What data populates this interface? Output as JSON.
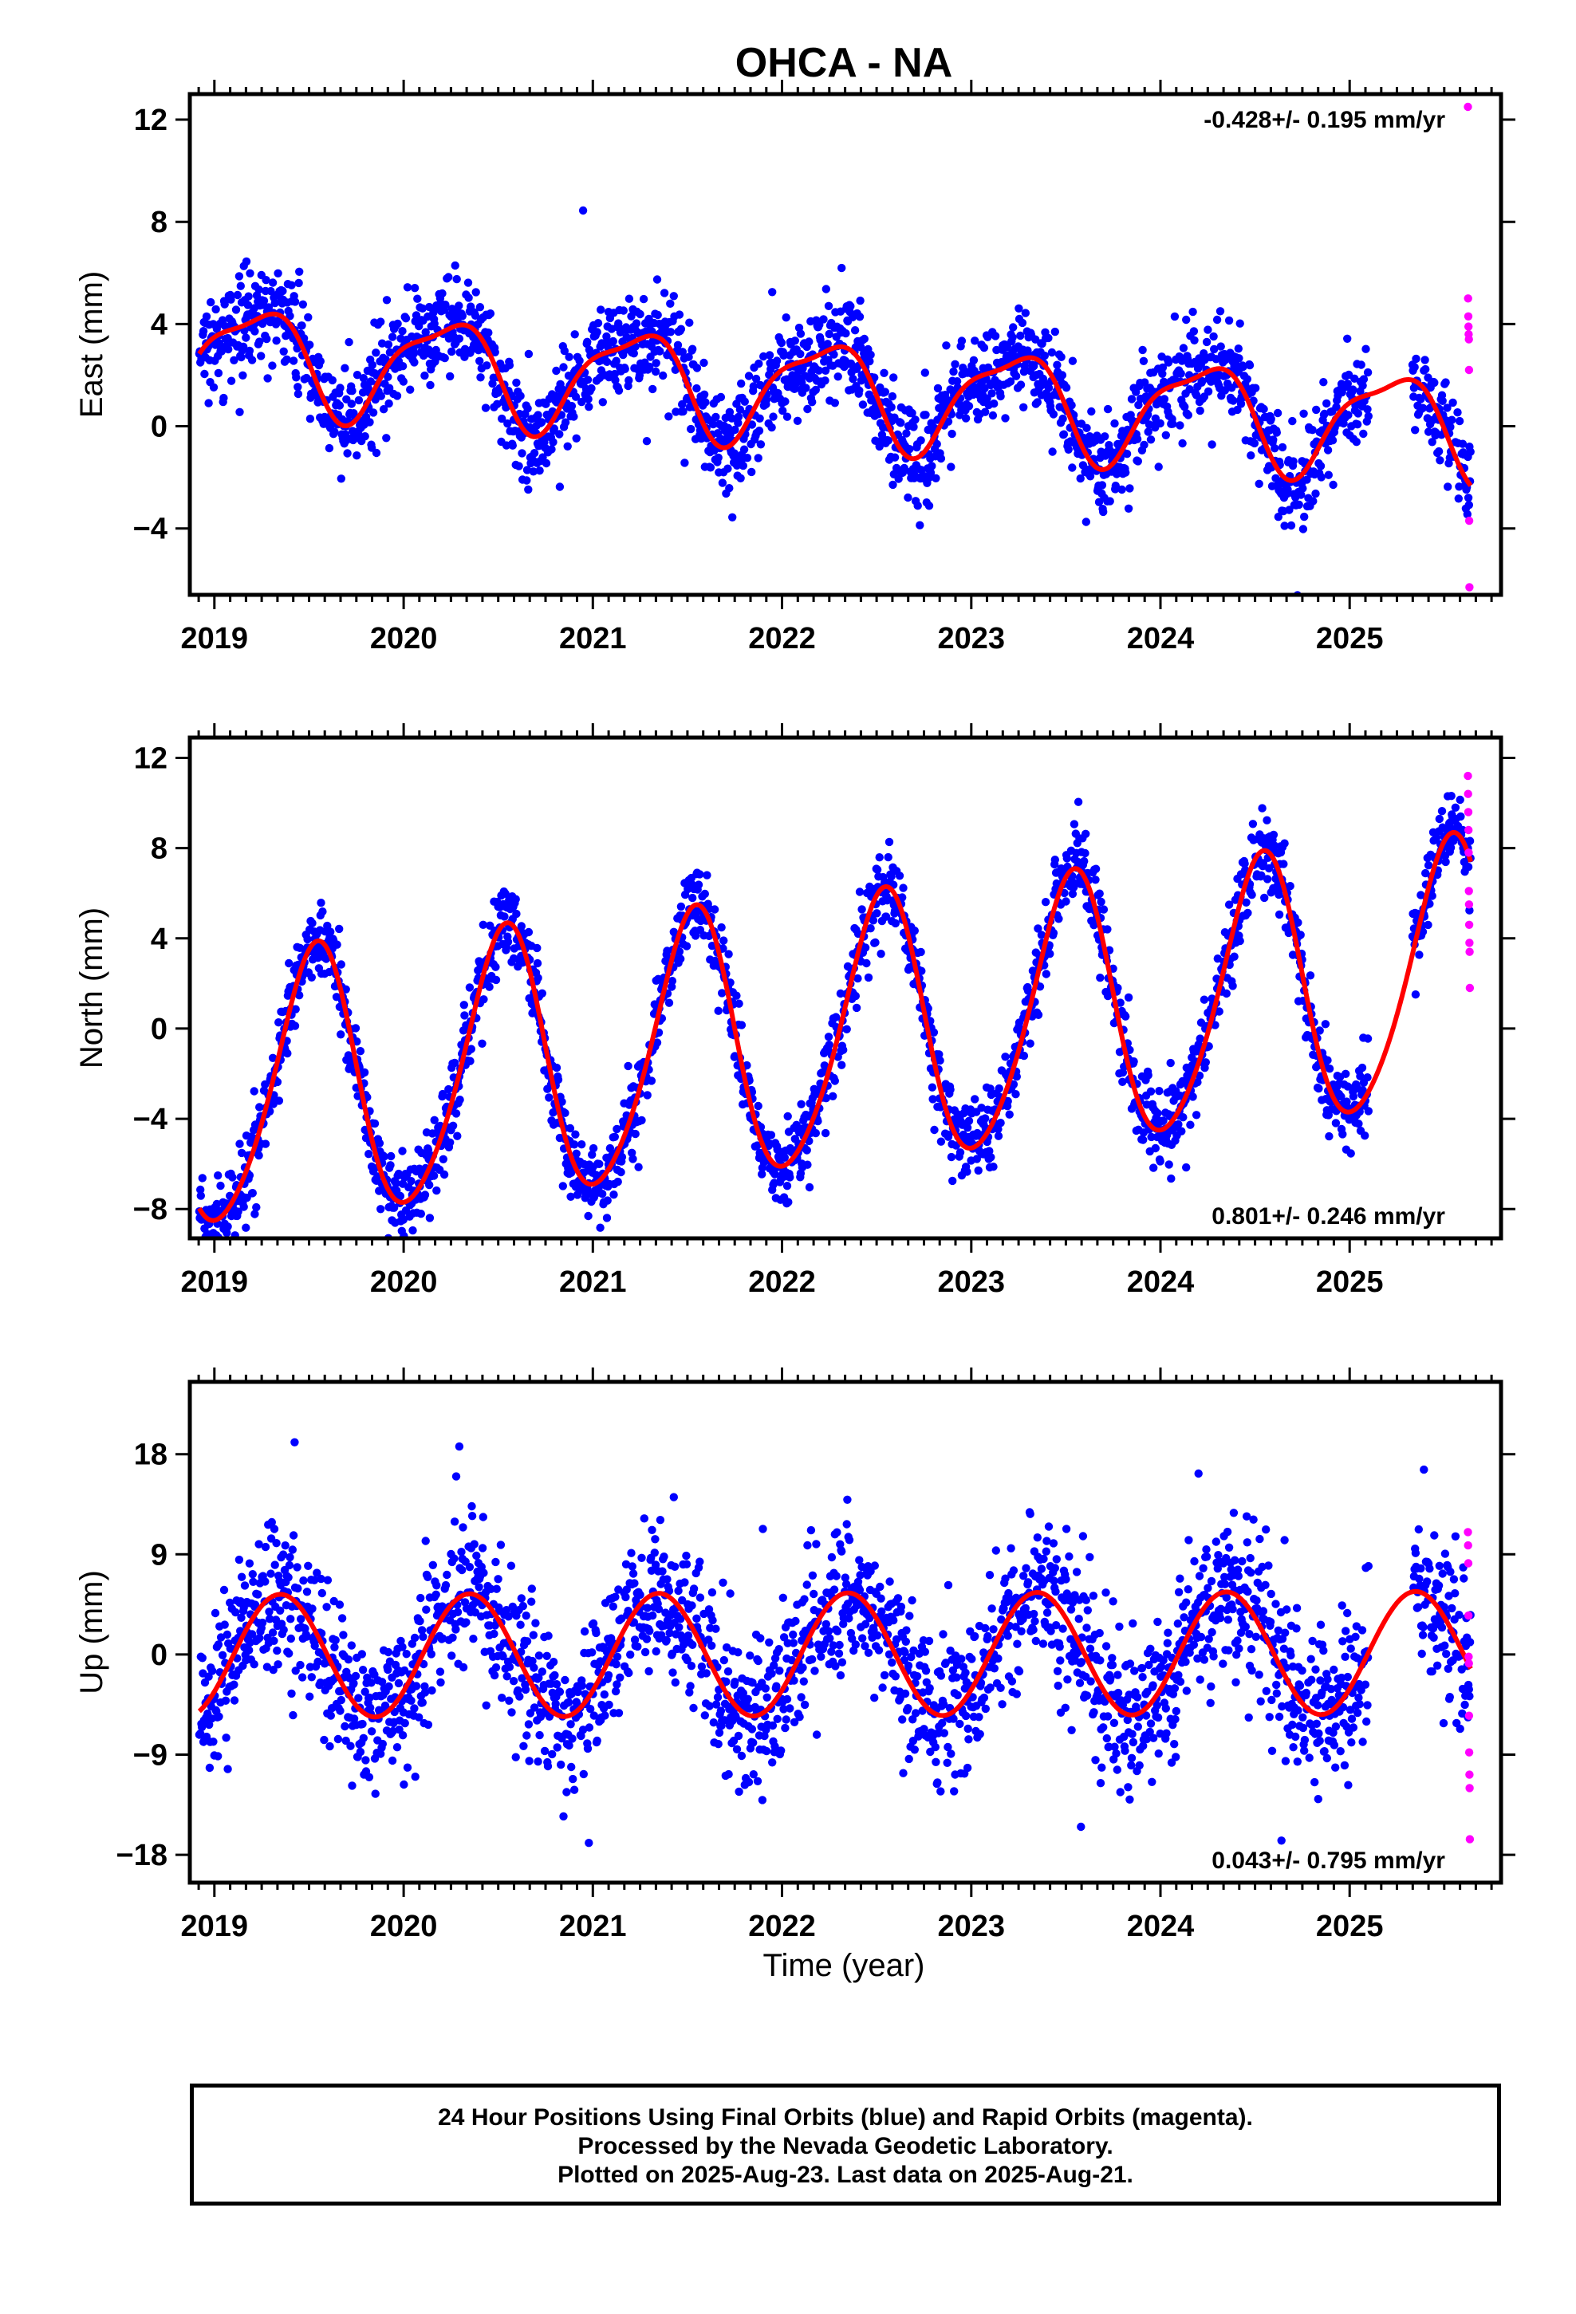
{
  "title": "OHCA - NA",
  "colors": {
    "final": "#0000ff",
    "rapid": "#ff00ff",
    "model": "#ff0000",
    "frame": "#000000"
  },
  "x_axis_label": "Time (year)",
  "footer": {
    "line1": "24 Hour Positions Using Final Orbits (blue) and Rapid Orbits (magenta).",
    "line2": "Processed by the Nevada Geodetic Laboratory.",
    "line3": "Plotted on 2025-Aug-23. Last data on 2025-Aug-21."
  },
  "chart_data": [
    {
      "type": "scatter",
      "component": "east",
      "ylabel": "East (mm)",
      "rate_label": "-0.428+/- 0.195 mm/yr",
      "rate_position": "top-right",
      "xlim": [
        2018.87,
        2025.8
      ],
      "ylim": [
        -6.6,
        13.0
      ],
      "xticks": [
        2019,
        2020,
        2021,
        2022,
        2023,
        2024,
        2025
      ],
      "yticks": [
        -4,
        0,
        4,
        8,
        12
      ],
      "data_start": 2018.92,
      "data_end": 2025.64,
      "gaps": [
        [
          2025.1,
          2025.33
        ]
      ],
      "trend": -0.428,
      "offset": 1.5,
      "annual": [
        0.4,
        1.9
      ],
      "semiannual": [
        0.3,
        -0.5
      ],
      "noise_sd": 0.95,
      "rapid_points": [
        {
          "x": 2025.625,
          "y": 12.5
        },
        {
          "x": 2025.626,
          "y": 5.0
        },
        {
          "x": 2025.627,
          "y": 4.3
        },
        {
          "x": 2025.628,
          "y": 3.9
        },
        {
          "x": 2025.629,
          "y": 3.6
        },
        {
          "x": 2025.63,
          "y": 3.4
        },
        {
          "x": 2025.631,
          "y": 2.2
        },
        {
          "x": 2025.632,
          "y": -3.7
        },
        {
          "x": 2025.633,
          "y": -6.3
        }
      ]
    },
    {
      "type": "scatter",
      "component": "north",
      "ylabel": "North (mm)",
      "rate_label": "0.801+/- 0.246 mm/yr",
      "rate_position": "bottom-right",
      "xlim": [
        2018.87,
        2025.8
      ],
      "ylim": [
        -9.3,
        12.9
      ],
      "xticks": [
        2019,
        2020,
        2021,
        2022,
        2023,
        2024,
        2025
      ],
      "yticks": [
        -8,
        -4,
        0,
        4,
        8,
        12
      ],
      "data_start": 2018.92,
      "data_end": 2025.64,
      "gaps": [
        [
          2025.1,
          2025.33
        ]
      ],
      "trend": 0.801,
      "offset": -0.6,
      "annual": [
        -5.8,
        -1.1
      ],
      "semiannual": [
        0.3,
        0.6
      ],
      "noise_sd": 0.9,
      "rapid_points": [
        {
          "x": 2025.625,
          "y": 11.2
        },
        {
          "x": 2025.626,
          "y": 10.4
        },
        {
          "x": 2025.627,
          "y": 9.6
        },
        {
          "x": 2025.628,
          "y": 8.8
        },
        {
          "x": 2025.629,
          "y": 7.8
        },
        {
          "x": 2025.63,
          "y": 6.1
        },
        {
          "x": 2025.631,
          "y": 5.5
        },
        {
          "x": 2025.632,
          "y": 4.6
        },
        {
          "x": 2025.633,
          "y": 3.8
        },
        {
          "x": 2025.634,
          "y": 3.4
        },
        {
          "x": 2025.635,
          "y": 1.8
        }
      ]
    },
    {
      "type": "scatter",
      "component": "up",
      "ylabel": "Up (mm)",
      "rate_label": "0.043+/- 0.795 mm/yr",
      "rate_position": "bottom-right",
      "xlim": [
        2018.87,
        2025.8
      ],
      "ylim": [
        -20.5,
        24.5
      ],
      "xticks": [
        2019,
        2020,
        2021,
        2022,
        2023,
        2024,
        2025
      ],
      "yticks": [
        -18,
        -9,
        0,
        9,
        18
      ],
      "data_start": 2018.92,
      "data_end": 2025.64,
      "gaps": [
        [
          2025.1,
          2025.33
        ]
      ],
      "trend": 0.043,
      "offset": 0.0,
      "annual": [
        -3.2,
        4.5
      ],
      "semiannual": [
        0.0,
        0.0
      ],
      "noise_sd": 3.4,
      "rapid_points": [
        {
          "x": 2025.625,
          "y": 11.0
        },
        {
          "x": 2025.626,
          "y": 9.8
        },
        {
          "x": 2025.627,
          "y": 8.2
        },
        {
          "x": 2025.628,
          "y": 3.5
        },
        {
          "x": 2025.629,
          "y": -0.2
        },
        {
          "x": 2025.63,
          "y": -0.8
        },
        {
          "x": 2025.631,
          "y": -5.5
        },
        {
          "x": 2025.632,
          "y": -8.8
        },
        {
          "x": 2025.633,
          "y": -10.8
        },
        {
          "x": 2025.634,
          "y": -12.0
        },
        {
          "x": 2025.635,
          "y": -16.6
        }
      ]
    }
  ]
}
